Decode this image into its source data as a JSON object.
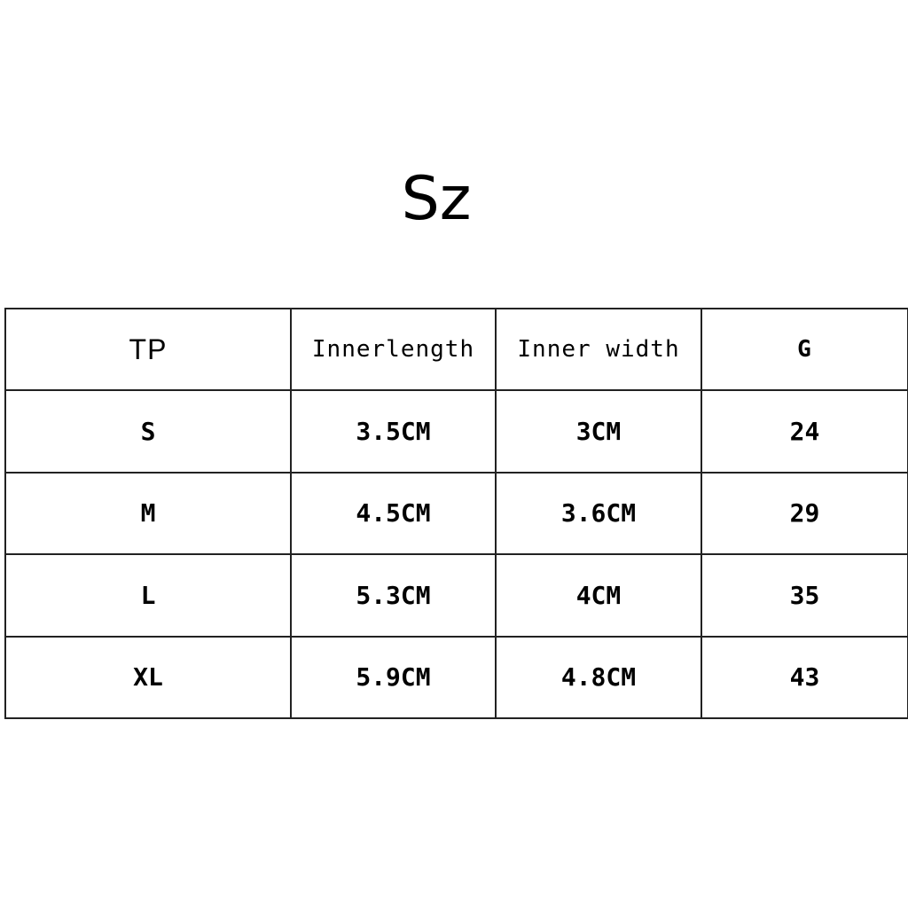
{
  "title": "Sz",
  "table": {
    "headers": [
      "TP",
      "Innerlength",
      "Inner width",
      "G"
    ],
    "rows": [
      [
        "S",
        "3.5CM",
        "3CM",
        "24"
      ],
      [
        "M",
        "4.5CM",
        "3.6CM",
        "29"
      ],
      [
        "L",
        "5.3CM",
        "4CM",
        "35"
      ],
      [
        "XL",
        "5.9CM",
        "4.8CM",
        "43"
      ]
    ]
  }
}
